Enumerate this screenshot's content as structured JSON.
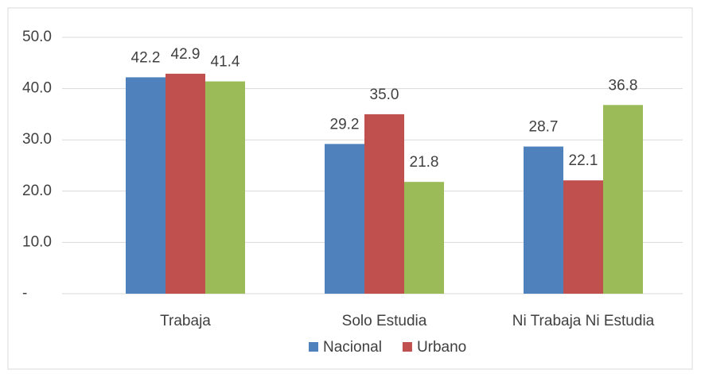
{
  "chart_data": {
    "type": "bar",
    "categories": [
      "Trabaja",
      "Solo Estudia",
      "Ni Trabaja Ni Estudia"
    ],
    "series": [
      {
        "name": "Nacional",
        "color": "#4f81bd",
        "values": [
          42.2,
          29.2,
          28.7
        ],
        "value_labels": [
          "42.2",
          "29.2",
          "28.7"
        ]
      },
      {
        "name": "Urbano",
        "color": "#c0504d",
        "values": [
          42.9,
          35.0,
          22.1
        ],
        "value_labels": [
          "42.9",
          "35.0",
          "22.1"
        ]
      },
      {
        "color": "#9bbb59",
        "values": [
          41.4,
          21.8,
          36.8
        ],
        "value_labels": [
          "41.4",
          "21.8",
          "36.8"
        ]
      }
    ],
    "ylim": [
      0,
      50
    ],
    "yticks": [
      {
        "value": 0,
        "label": "-"
      },
      {
        "value": 10,
        "label": "10.0"
      },
      {
        "value": 20,
        "label": "20.0"
      },
      {
        "value": 30,
        "label": "30.0"
      },
      {
        "value": 40,
        "label": "40.0"
      },
      {
        "value": 50,
        "label": "50.0"
      }
    ],
    "grid": true,
    "legend": "bottom"
  }
}
